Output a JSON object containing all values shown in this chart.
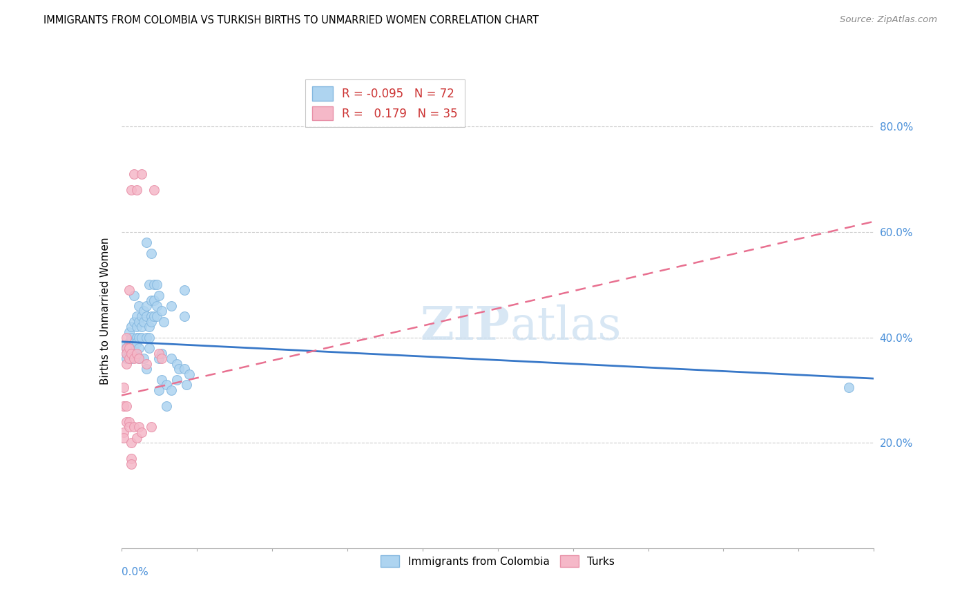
{
  "title": "IMMIGRANTS FROM COLOMBIA VS TURKISH BIRTHS TO UNMARRIED WOMEN CORRELATION CHART",
  "source": "Source: ZipAtlas.com",
  "ylabel": "Births to Unmarried Women",
  "ytick_vals": [
    0.2,
    0.4,
    0.6,
    0.8
  ],
  "ytick_labels": [
    "20.0%",
    "40.0%",
    "60.0%",
    "80.0%"
  ],
  "watermark": "ZIPatlas",
  "series1_color": "#aed4f0",
  "series2_color": "#f5b8c8",
  "series1_edge": "#85b8e0",
  "series2_edge": "#e890a8",
  "line1_color": "#3878c8",
  "line2_color": "#e87090",
  "blue_dots": [
    [
      0.001,
      0.385
    ],
    [
      0.002,
      0.37
    ],
    [
      0.002,
      0.36
    ],
    [
      0.002,
      0.38
    ],
    [
      0.003,
      0.39
    ],
    [
      0.003,
      0.41
    ],
    [
      0.003,
      0.38
    ],
    [
      0.003,
      0.36
    ],
    [
      0.004,
      0.4
    ],
    [
      0.004,
      0.38
    ],
    [
      0.004,
      0.42
    ],
    [
      0.004,
      0.36
    ],
    [
      0.005,
      0.48
    ],
    [
      0.005,
      0.43
    ],
    [
      0.005,
      0.39
    ],
    [
      0.005,
      0.38
    ],
    [
      0.005,
      0.37
    ],
    [
      0.006,
      0.44
    ],
    [
      0.006,
      0.42
    ],
    [
      0.006,
      0.4
    ],
    [
      0.006,
      0.39
    ],
    [
      0.007,
      0.46
    ],
    [
      0.007,
      0.43
    ],
    [
      0.007,
      0.4
    ],
    [
      0.007,
      0.38
    ],
    [
      0.007,
      0.36
    ],
    [
      0.008,
      0.44
    ],
    [
      0.008,
      0.42
    ],
    [
      0.008,
      0.4
    ],
    [
      0.009,
      0.45
    ],
    [
      0.009,
      0.43
    ],
    [
      0.009,
      0.36
    ],
    [
      0.01,
      0.58
    ],
    [
      0.01,
      0.46
    ],
    [
      0.01,
      0.44
    ],
    [
      0.01,
      0.4
    ],
    [
      0.01,
      0.34
    ],
    [
      0.011,
      0.5
    ],
    [
      0.011,
      0.42
    ],
    [
      0.011,
      0.4
    ],
    [
      0.011,
      0.38
    ],
    [
      0.012,
      0.56
    ],
    [
      0.012,
      0.47
    ],
    [
      0.012,
      0.44
    ],
    [
      0.012,
      0.43
    ],
    [
      0.013,
      0.5
    ],
    [
      0.013,
      0.47
    ],
    [
      0.013,
      0.44
    ],
    [
      0.014,
      0.5
    ],
    [
      0.014,
      0.46
    ],
    [
      0.014,
      0.44
    ],
    [
      0.015,
      0.48
    ],
    [
      0.015,
      0.36
    ],
    [
      0.015,
      0.3
    ],
    [
      0.016,
      0.45
    ],
    [
      0.016,
      0.37
    ],
    [
      0.016,
      0.32
    ],
    [
      0.017,
      0.43
    ],
    [
      0.018,
      0.31
    ],
    [
      0.018,
      0.27
    ],
    [
      0.02,
      0.46
    ],
    [
      0.02,
      0.36
    ],
    [
      0.02,
      0.3
    ],
    [
      0.022,
      0.35
    ],
    [
      0.022,
      0.32
    ],
    [
      0.023,
      0.34
    ],
    [
      0.025,
      0.49
    ],
    [
      0.025,
      0.44
    ],
    [
      0.025,
      0.34
    ],
    [
      0.026,
      0.31
    ],
    [
      0.027,
      0.33
    ],
    [
      0.29,
      0.305
    ]
  ],
  "pink_dots": [
    [
      0.001,
      0.305
    ],
    [
      0.001,
      0.27
    ],
    [
      0.001,
      0.22
    ],
    [
      0.001,
      0.21
    ],
    [
      0.002,
      0.4
    ],
    [
      0.002,
      0.38
    ],
    [
      0.002,
      0.37
    ],
    [
      0.002,
      0.35
    ],
    [
      0.002,
      0.27
    ],
    [
      0.002,
      0.24
    ],
    [
      0.003,
      0.49
    ],
    [
      0.003,
      0.38
    ],
    [
      0.003,
      0.36
    ],
    [
      0.003,
      0.24
    ],
    [
      0.003,
      0.23
    ],
    [
      0.004,
      0.68
    ],
    [
      0.004,
      0.37
    ],
    [
      0.004,
      0.2
    ],
    [
      0.004,
      0.17
    ],
    [
      0.004,
      0.16
    ],
    [
      0.005,
      0.71
    ],
    [
      0.005,
      0.36
    ],
    [
      0.005,
      0.23
    ],
    [
      0.006,
      0.68
    ],
    [
      0.006,
      0.37
    ],
    [
      0.006,
      0.21
    ],
    [
      0.007,
      0.36
    ],
    [
      0.007,
      0.23
    ],
    [
      0.008,
      0.71
    ],
    [
      0.008,
      0.22
    ],
    [
      0.01,
      0.35
    ],
    [
      0.012,
      0.23
    ],
    [
      0.013,
      0.68
    ],
    [
      0.015,
      0.37
    ],
    [
      0.016,
      0.36
    ]
  ],
  "xlim": [
    0.0,
    0.3
  ],
  "ylim": [
    0.0,
    0.9
  ],
  "blue_line": {
    "x0": 0.0,
    "y0": 0.392,
    "x1": 0.3,
    "y1": 0.322
  },
  "pink_line": {
    "x0": 0.0,
    "y0": 0.29,
    "x1": 0.3,
    "y1": 0.62
  }
}
